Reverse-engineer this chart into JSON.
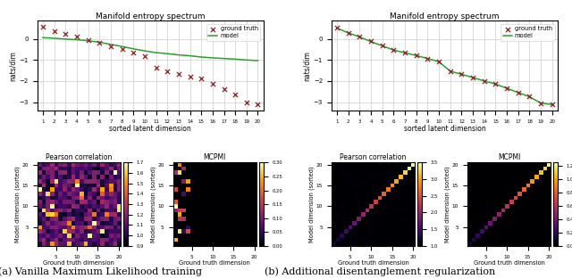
{
  "title": "Manifold entropy spectrum",
  "xlabel": "sorted latent dimension",
  "ylabel": "nats/dim",
  "legend_gt": "ground truth",
  "legend_model": "model",
  "dims": [
    1,
    2,
    3,
    4,
    5,
    6,
    7,
    8,
    9,
    10,
    11,
    12,
    13,
    14,
    15,
    16,
    17,
    18,
    19,
    20
  ],
  "gt_a": [
    0.58,
    0.35,
    0.22,
    0.1,
    -0.05,
    -0.2,
    -0.35,
    -0.5,
    -0.65,
    -0.82,
    -1.38,
    -1.52,
    -1.67,
    -1.8,
    -1.88,
    -2.12,
    -2.38,
    -2.62,
    -3.02,
    -3.08
  ],
  "model_a": [
    0.06,
    0.03,
    -0.01,
    -0.04,
    -0.09,
    -0.16,
    -0.26,
    -0.36,
    -0.47,
    -0.57,
    -0.65,
    -0.7,
    -0.76,
    -0.8,
    -0.86,
    -0.9,
    -0.93,
    -0.96,
    -1.0,
    -1.03
  ],
  "gt_b": [
    0.52,
    0.29,
    0.1,
    -0.12,
    -0.32,
    -0.52,
    -0.65,
    -0.78,
    -0.93,
    -1.08,
    -1.52,
    -1.67,
    -1.82,
    -1.98,
    -2.13,
    -2.33,
    -2.53,
    -2.73,
    -3.07,
    -3.1
  ],
  "model_b": [
    0.51,
    0.28,
    0.09,
    -0.13,
    -0.33,
    -0.53,
    -0.66,
    -0.79,
    -0.93,
    -1.08,
    -1.53,
    -1.68,
    -1.83,
    -1.99,
    -2.14,
    -2.34,
    -2.54,
    -2.74,
    -3.04,
    -3.11
  ],
  "gt_color": "#8b2020",
  "model_color": "#2ca02c",
  "label_a": "(a) Vanilla Maximum Likelihood training",
  "label_b": "(b) Additional disentanglement regularization",
  "pearson_a_vmin": 0.9,
  "pearson_a_vmax": 1.7,
  "mcpmi_a_vmin": 0.0,
  "mcpmi_a_vmax": 0.3,
  "pearson_b_vmin": 1.0,
  "pearson_b_vmax": 3.5,
  "mcpmi_b_vmin": 0.0,
  "mcpmi_b_vmax": 1.25,
  "cmap_heatmap": "inferno",
  "n": 20
}
